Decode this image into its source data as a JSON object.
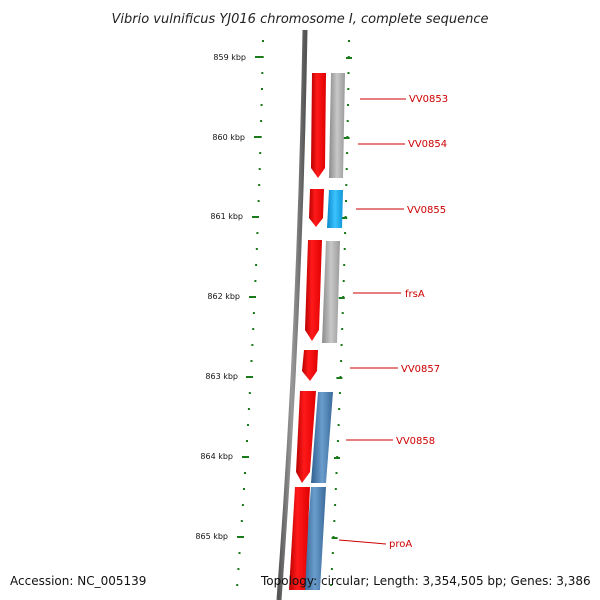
{
  "title": "Vibrio vulnificus YJ016 chromosome I, complete sequence",
  "accession": "Accession: NC_005139",
  "summary": "Topology: circular; Length: 3,354,505 bp; Genes: 3,386",
  "ticks": [
    "859 kbp",
    "860 kbp",
    "861 kbp",
    "862 kbp",
    "863 kbp",
    "864 kbp",
    "865 kbp"
  ],
  "genes": [
    {
      "label": "VV0853",
      "feature_color": "#aaaaaa"
    },
    {
      "label": "VV0854",
      "feature_color": "#aaaaaa"
    },
    {
      "label": "VV0855",
      "feature_color": "#1aa7e6"
    },
    {
      "label": "frsA",
      "feature_color": "#aaaaaa"
    },
    {
      "label": "VV0857",
      "feature_color": "none"
    },
    {
      "label": "VV0858",
      "feature_color": "#4a7eb0"
    },
    {
      "label": "proA",
      "feature_color": "#4a7eb0"
    }
  ],
  "colors": {
    "gene": "#ee0000",
    "backbone": "#777777",
    "tick": "#1a7a1a",
    "label": "#cc0000"
  }
}
